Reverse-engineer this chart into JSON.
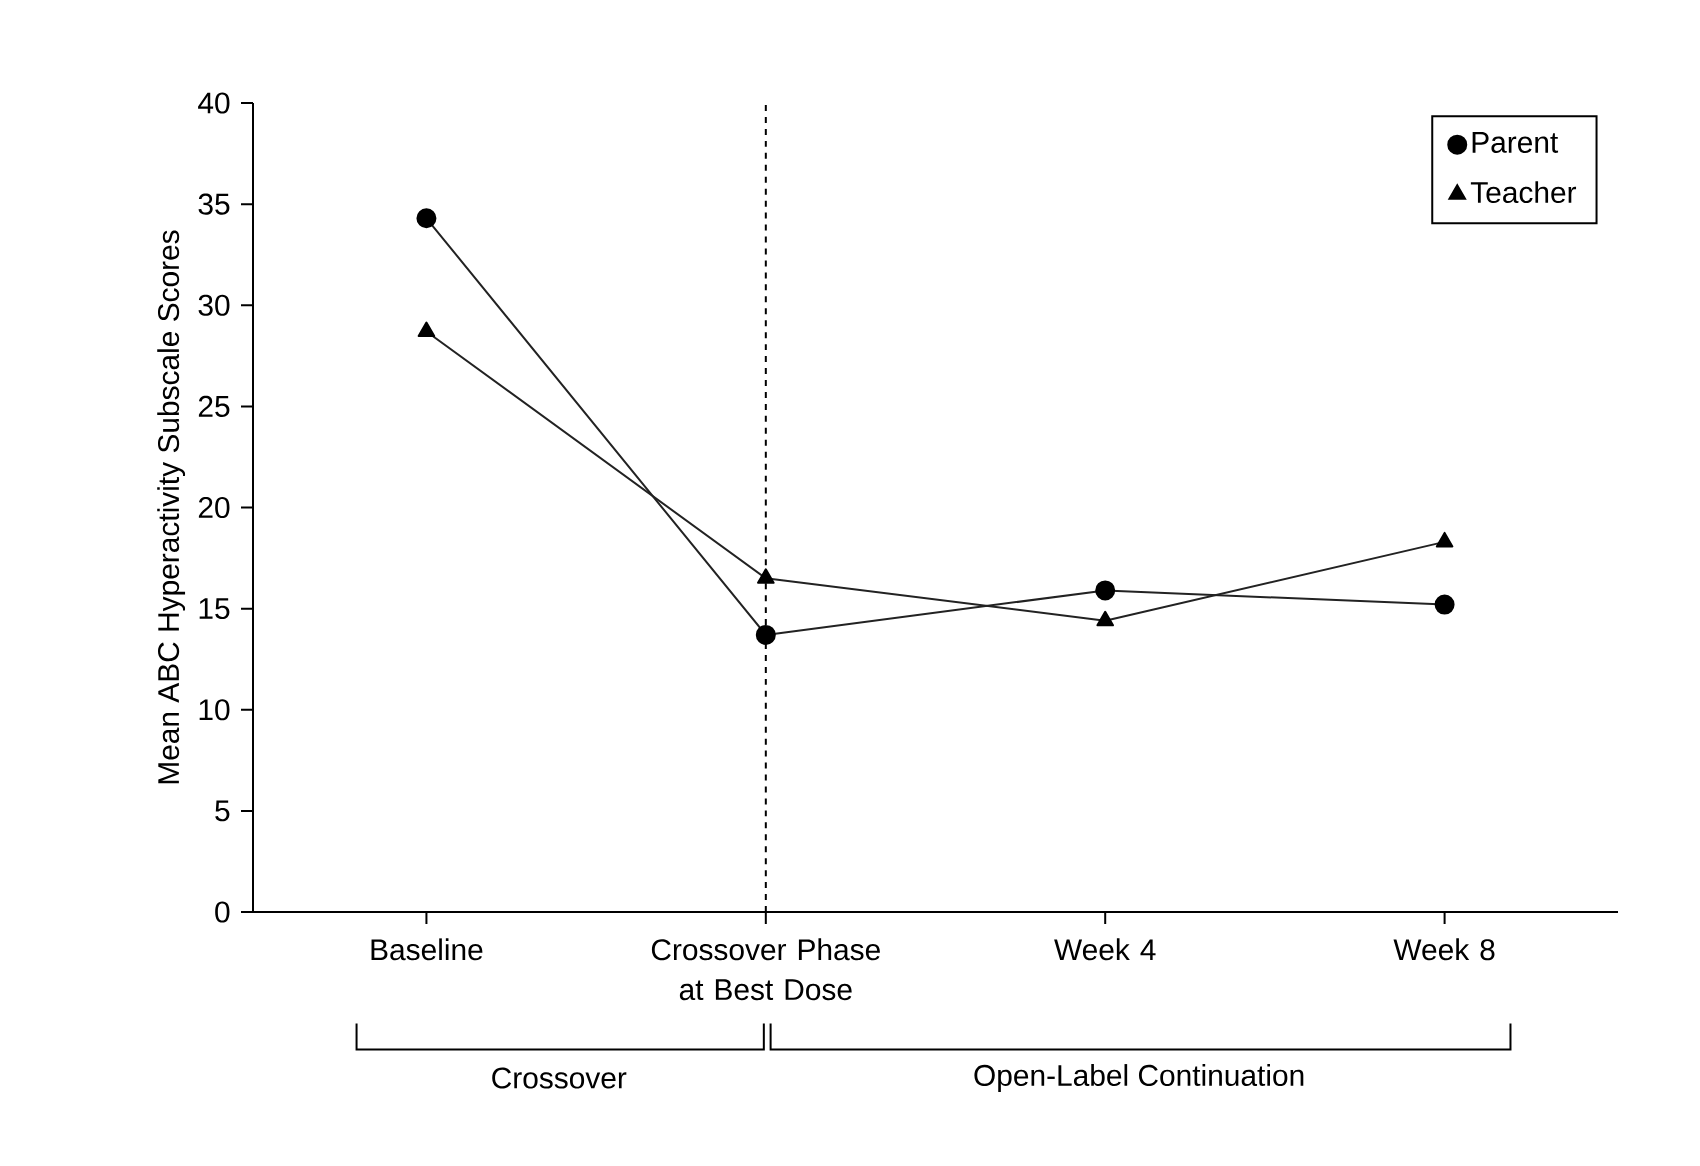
{
  "chart_data": {
    "type": "line",
    "ylabel": "Mean ABC Hyperactivity Subscale Scores",
    "categories": [
      "Baseline",
      "Crossover Phase at Best Dose",
      "Week 4",
      "Week 8"
    ],
    "series": [
      {
        "name": "Parent",
        "color": "#222222",
        "marker": "circle",
        "values": [
          34.3,
          13.7,
          15.9,
          15.2
        ]
      },
      {
        "name": "Teacher",
        "color": "#222222",
        "marker": "triangle",
        "values": [
          28.7,
          16.5,
          14.4,
          18.3
        ]
      }
    ],
    "ylim": [
      0,
      40
    ],
    "yticks": [
      0,
      5,
      10,
      15,
      20,
      25,
      30,
      35,
      40
    ],
    "legend": "top right",
    "ref_lines": [
      {
        "axis": "x",
        "value": "Crossover Phase at Best Dose",
        "line_style": "dashed",
        "color": "#000000"
      }
    ],
    "annotations": [
      "Crossover",
      "Open-Label Continuation"
    ]
  }
}
